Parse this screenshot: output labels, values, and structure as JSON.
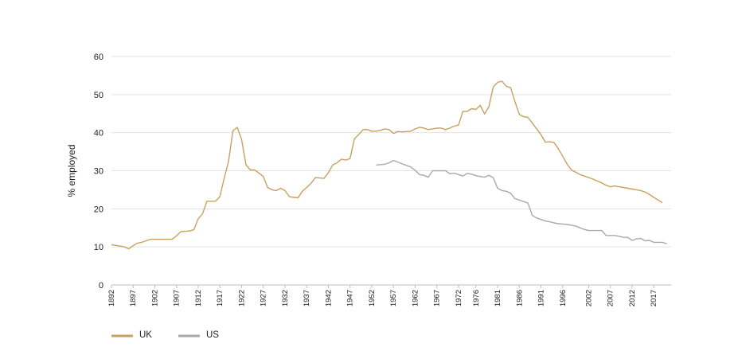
{
  "chart_data": {
    "type": "line",
    "title": "",
    "xlabel": "",
    "ylabel": "% employed",
    "ylim": [
      0,
      60
    ],
    "xlim": [
      1892,
      2021
    ],
    "yticks": [
      0,
      10,
      20,
      30,
      40,
      50,
      60
    ],
    "xticks": [
      1892,
      1897,
      1902,
      1907,
      1912,
      1917,
      1922,
      1927,
      1932,
      1937,
      1942,
      1947,
      1952,
      1957,
      1962,
      1967,
      1972,
      1976,
      1981,
      1986,
      1991,
      1996,
      2002,
      2007,
      2012,
      2017
    ],
    "grid": "horizontal",
    "legend_position": "bottom-left",
    "series": [
      {
        "name": "UK",
        "color": "#c9a060",
        "x": [
          1892,
          1893,
          1894,
          1895,
          1896,
          1897,
          1898,
          1899,
          1900,
          1901,
          1902,
          1903,
          1904,
          1905,
          1906,
          1907,
          1908,
          1909,
          1910,
          1911,
          1912,
          1913,
          1914,
          1915,
          1916,
          1917,
          1918,
          1919,
          1920,
          1921,
          1922,
          1923,
          1924,
          1925,
          1926,
          1927,
          1928,
          1929,
          1930,
          1931,
          1932,
          1933,
          1934,
          1935,
          1936,
          1937,
          1938,
          1939,
          1940,
          1941,
          1942,
          1943,
          1944,
          1945,
          1946,
          1947,
          1948,
          1949,
          1950,
          1951,
          1952,
          1953,
          1954,
          1955,
          1956,
          1957,
          1958,
          1959,
          1960,
          1961,
          1962,
          1963,
          1964,
          1965,
          1966,
          1967,
          1968,
          1969,
          1970,
          1971,
          1972,
          1973,
          1974,
          1975,
          1976,
          1977,
          1978,
          1979,
          1980,
          1981,
          1982,
          1983,
          1984,
          1985,
          1986,
          1987,
          1988,
          1989,
          1990,
          1991,
          1992,
          1993,
          1994,
          1995,
          1996,
          1997,
          1998,
          1999,
          2000,
          2001,
          2002,
          2003,
          2004,
          2005,
          2006,
          2007,
          2008,
          2009,
          2010,
          2011,
          2012,
          2013,
          2014,
          2015,
          2016,
          2017,
          2018,
          2019
        ],
        "values": [
          10.6,
          10.4,
          10.2,
          10.0,
          9.5,
          10.3,
          11.0,
          11.2,
          11.6,
          12.0,
          12.0,
          12.0,
          12.0,
          12.0,
          12.0,
          12.9,
          14.0,
          14.1,
          14.2,
          14.5,
          17.4,
          18.7,
          22.0,
          22.0,
          22.0,
          23.2,
          28.1,
          32.5,
          40.5,
          41.4,
          38.2,
          31.6,
          30.2,
          30.2,
          29.4,
          28.5,
          25.6,
          25.0,
          24.8,
          25.4,
          24.8,
          23.2,
          23.0,
          22.9,
          24.6,
          25.6,
          26.7,
          28.2,
          28.1,
          28.0,
          29.5,
          31.5,
          32.1,
          33.0,
          32.8,
          33.2,
          38.4,
          39.5,
          40.8,
          40.8,
          40.4,
          40.4,
          40.6,
          41.0,
          40.8,
          39.8,
          40.3,
          40.2,
          40.3,
          40.4,
          41.0,
          41.4,
          41.2,
          40.8,
          41.0,
          41.2,
          41.2,
          40.8,
          41.2,
          41.7,
          42.0,
          45.6,
          45.6,
          46.3,
          46.1,
          47.2,
          44.9,
          46.8,
          52.0,
          53.2,
          53.5,
          52.2,
          51.8,
          48.2,
          44.8,
          44.2,
          44.0,
          42.5,
          41.0,
          39.5,
          37.5,
          37.6,
          37.4,
          35.8,
          33.8,
          31.8,
          30.2,
          29.6,
          29.0,
          28.6,
          28.2,
          27.8,
          27.3,
          26.8,
          26.2,
          25.8,
          26.0,
          25.8,
          25.6,
          25.4,
          25.2,
          25.0,
          24.8,
          24.4,
          23.8,
          23.0,
          22.3,
          21.6
        ]
      },
      {
        "name": "US",
        "color": "#a9a9a9",
        "x": [
          1953,
          1954,
          1955,
          1956,
          1957,
          1958,
          1959,
          1960,
          1961,
          1962,
          1963,
          1964,
          1965,
          1966,
          1967,
          1968,
          1969,
          1970,
          1971,
          1972,
          1973,
          1974,
          1975,
          1976,
          1977,
          1978,
          1979,
          1980,
          1981,
          1982,
          1983,
          1984,
          1985,
          1986,
          1987,
          1988,
          1989,
          1990,
          1991,
          1992,
          1993,
          1994,
          1995,
          1996,
          1997,
          1998,
          1999,
          2000,
          2001,
          2002,
          2003,
          2004,
          2005,
          2006,
          2007,
          2008,
          2009,
          2010,
          2011,
          2012,
          2013,
          2014,
          2015,
          2016,
          2017,
          2018,
          2019,
          2020
        ],
        "values": [
          31.5,
          31.6,
          31.7,
          32.1,
          32.7,
          32.3,
          31.8,
          31.4,
          31.0,
          30.1,
          29.0,
          28.8,
          28.3,
          30.0,
          30.0,
          30.0,
          30.0,
          29.2,
          29.4,
          29.0,
          28.6,
          29.3,
          29.1,
          28.7,
          28.5,
          28.3,
          28.8,
          28.2,
          25.4,
          24.8,
          24.6,
          24.1,
          22.7,
          22.3,
          21.9,
          21.5,
          18.3,
          17.6,
          17.2,
          16.8,
          16.6,
          16.3,
          16.1,
          16.0,
          15.9,
          15.7,
          15.5,
          15.0,
          14.6,
          14.3,
          14.3,
          14.3,
          14.3,
          13.0,
          13.0,
          13.0,
          12.8,
          12.5,
          12.5,
          11.7,
          12.1,
          12.2,
          11.6,
          11.7,
          11.2,
          11.2,
          11.2,
          10.8
        ]
      }
    ]
  }
}
